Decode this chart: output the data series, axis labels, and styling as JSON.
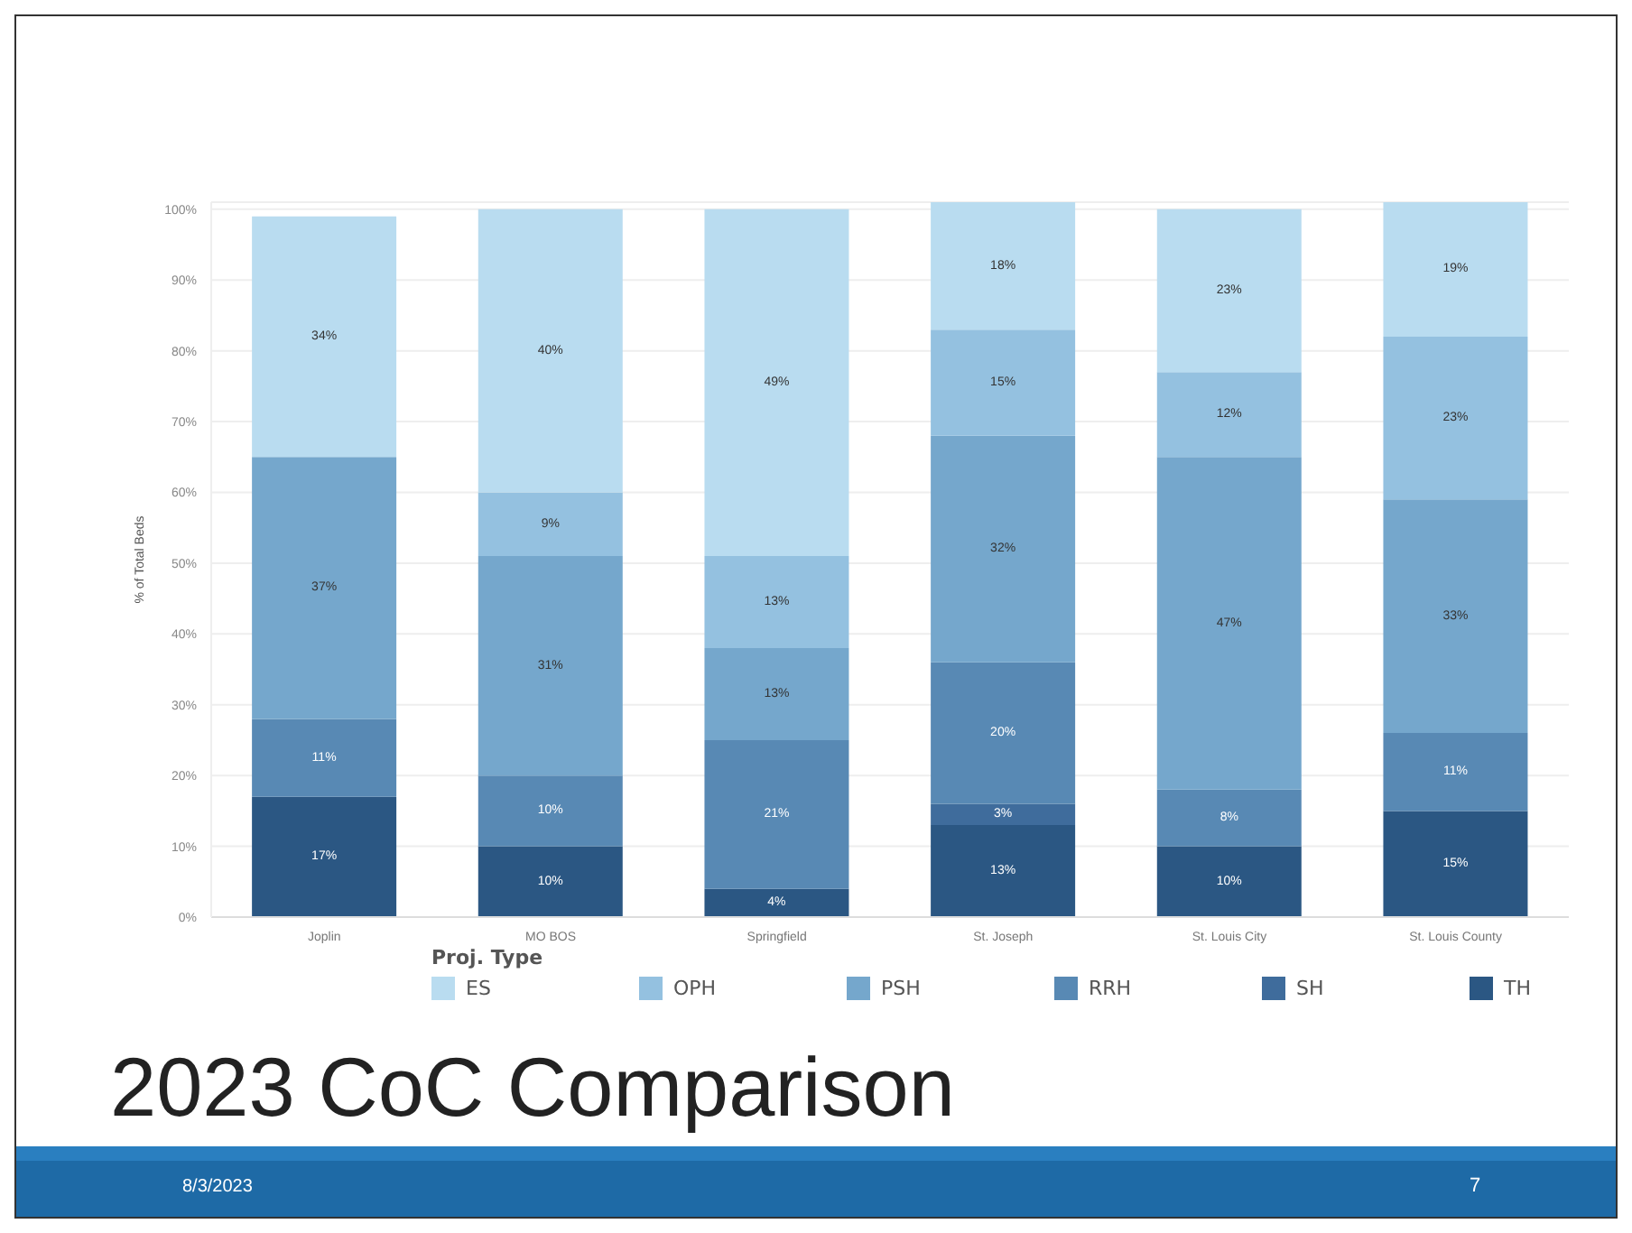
{
  "chart_data": {
    "type": "bar",
    "title": "2023 CoC Comparison",
    "ylabel": "% of Total Beds",
    "legend_title": "Proj. Type",
    "stacked": true,
    "legend": "bottom",
    "grid": "y",
    "categories": [
      "Joplin",
      "MO BOS",
      "Springfield",
      "St. Joseph",
      "St. Louis City",
      "St. Louis County"
    ],
    "ylim": [
      0,
      101
    ],
    "yticks": [
      {
        "value": 0,
        "label": "0%"
      },
      {
        "value": 10,
        "label": "10%"
      },
      {
        "value": 20,
        "label": "20%"
      },
      {
        "value": 30,
        "label": "30%"
      },
      {
        "value": 40,
        "label": "40%"
      },
      {
        "value": 50,
        "label": "50%"
      },
      {
        "value": 60,
        "label": "60%"
      },
      {
        "value": 70,
        "label": "70%"
      },
      {
        "value": 80,
        "label": "80%"
      },
      {
        "value": 90,
        "label": "90%"
      },
      {
        "value": 100,
        "label": "100%"
      }
    ],
    "series": [
      {
        "name": "TH",
        "color": "#2b5783",
        "values": [
          17,
          10,
          4,
          13,
          10,
          15
        ],
        "value_labels": [
          "17%",
          "10%",
          "4%",
          "13%",
          "10%",
          "15%"
        ]
      },
      {
        "name": "SH",
        "color": "#3f6c9c",
        "values": [
          null,
          null,
          null,
          3,
          null,
          null
        ],
        "value_labels": [
          null,
          null,
          null,
          "3%",
          null,
          null
        ]
      },
      {
        "name": "RRH",
        "color": "#5889b4",
        "values": [
          11,
          10,
          21,
          20,
          8,
          11
        ],
        "value_labels": [
          "11%",
          "10%",
          "21%",
          "20%",
          "8%",
          "11%"
        ]
      },
      {
        "name": "PSH",
        "color": "#75a7cc",
        "values": [
          37,
          31,
          13,
          32,
          47,
          33
        ],
        "value_labels": [
          "37%",
          "31%",
          "13%",
          "32%",
          "47%",
          "33%"
        ]
      },
      {
        "name": "OPH",
        "color": "#94c1e0",
        "values": [
          null,
          9,
          13,
          15,
          12,
          23
        ],
        "value_labels": [
          null,
          "9%",
          "13%",
          "15%",
          "12%",
          "23%"
        ]
      },
      {
        "name": "ES",
        "color": "#b9dcf0",
        "values": [
          34,
          40,
          49,
          18,
          23,
          19
        ],
        "value_labels": [
          "34%",
          "40%",
          "49%",
          "18%",
          "23%",
          "19%"
        ]
      }
    ],
    "annotations": [
      "8/3/2023",
      "7"
    ]
  }
}
